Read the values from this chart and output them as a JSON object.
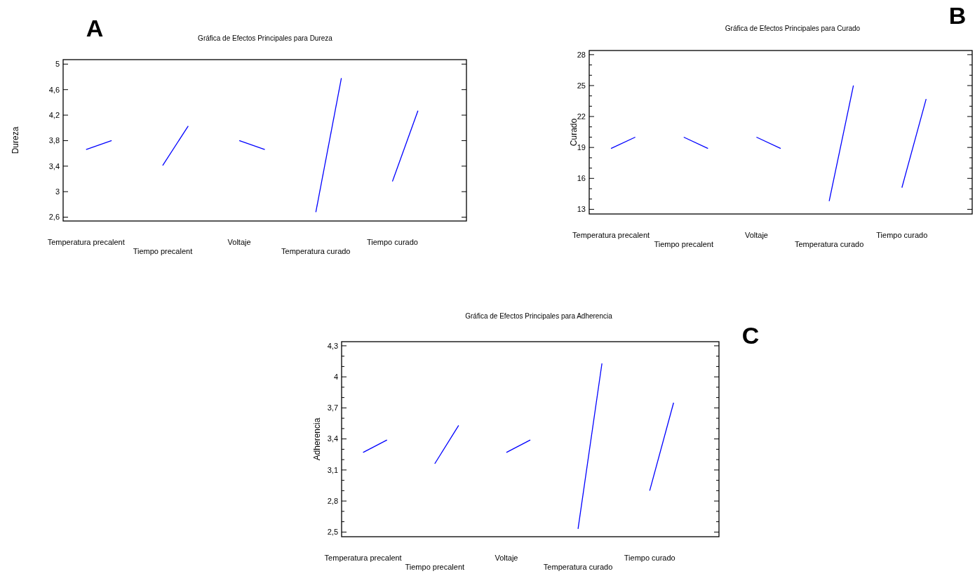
{
  "chart_data": [
    {
      "type": "line",
      "title": "Gráfica de Efectos Principales para Dureza",
      "ylabel": "Dureza",
      "annotations": [
        "A"
      ],
      "grid": false,
      "marker": "none",
      "line_style": "solid",
      "categories": [
        "Temperatura precalent",
        null,
        null,
        "Tiempo precalent",
        null,
        null,
        "Voltaje",
        null,
        null,
        "Temperatura curado",
        null,
        null,
        "Tiempo curado",
        null,
        null
      ],
      "series": [
        {
          "color": "#0000ff",
          "values": [
            3.66,
            3.8,
            null,
            null,
            null,
            null,
            null,
            null,
            null,
            null,
            null,
            null,
            null,
            null,
            null
          ]
        },
        {
          "color": "#0000ff",
          "values": [
            null,
            null,
            null,
            3.41,
            4.03,
            null,
            null,
            null,
            null,
            null,
            null,
            null,
            null,
            null,
            null
          ]
        },
        {
          "color": "#0000ff",
          "values": [
            null,
            null,
            null,
            null,
            null,
            null,
            3.8,
            3.66,
            null,
            null,
            null,
            null,
            null,
            null,
            null
          ]
        },
        {
          "color": "#0000ff",
          "values": [
            null,
            null,
            null,
            null,
            null,
            null,
            null,
            null,
            null,
            2.68,
            4.78,
            null,
            null,
            null,
            null
          ]
        },
        {
          "color": "#0000ff",
          "values": [
            null,
            null,
            null,
            null,
            null,
            null,
            null,
            null,
            null,
            null,
            null,
            null,
            3.16,
            4.27,
            null
          ]
        }
      ],
      "ylim": [
        2.54,
        5.07
      ],
      "yticks": [
        {
          "value": 2.6,
          "label": "2,6"
        },
        3,
        {
          "value": 3.4,
          "label": "3,4"
        },
        {
          "value": 3.8,
          "label": "3,8"
        },
        {
          "value": 4.2,
          "label": "4,2"
        },
        {
          "value": 4.6,
          "label": "4,6"
        },
        5
      ]
    },
    {
      "type": "line",
      "title": "Gráfica de Efectos Principales para Curado",
      "ylabel": "Curado",
      "annotations": [
        "B"
      ],
      "grid": false,
      "marker": "none",
      "line_style": "solid",
      "categories": [
        "Temperatura precalent",
        null,
        null,
        "Tiempo precalent",
        null,
        null,
        "Voltaje",
        null,
        null,
        "Temperatura curado",
        null,
        null,
        "Tiempo curado",
        null,
        null
      ],
      "series": [
        {
          "color": "#0000ff",
          "values": [
            18.9,
            20,
            null,
            null,
            null,
            null,
            null,
            null,
            null,
            null,
            null,
            null,
            null,
            null,
            null
          ]
        },
        {
          "color": "#0000ff",
          "values": [
            null,
            null,
            null,
            20,
            18.9,
            null,
            null,
            null,
            null,
            null,
            null,
            null,
            null,
            null,
            null
          ]
        },
        {
          "color": "#0000ff",
          "values": [
            null,
            null,
            null,
            null,
            null,
            null,
            20,
            18.9,
            null,
            null,
            null,
            null,
            null,
            null,
            null
          ]
        },
        {
          "color": "#0000ff",
          "values": [
            null,
            null,
            null,
            null,
            null,
            null,
            null,
            null,
            null,
            13.8,
            25,
            null,
            null,
            null,
            null
          ]
        },
        {
          "color": "#0000ff",
          "values": [
            null,
            null,
            null,
            null,
            null,
            null,
            null,
            null,
            null,
            null,
            null,
            null,
            15.1,
            23.7,
            null
          ]
        }
      ],
      "ylim": [
        12.55,
        28.4
      ],
      "yticks": [
        13,
        {
          "value": 14,
          "label": null
        },
        {
          "value": 15,
          "label": null
        },
        16,
        {
          "value": 17,
          "label": null
        },
        {
          "value": 18,
          "label": null
        },
        19,
        {
          "value": 20,
          "label": null
        },
        {
          "value": 21,
          "label": null
        },
        22,
        {
          "value": 23,
          "label": null
        },
        {
          "value": 24,
          "label": null
        },
        25,
        {
          "value": 26,
          "label": null
        },
        {
          "value": 27,
          "label": null
        },
        28
      ]
    },
    {
      "type": "line",
      "title": "Gráfica de Efectos Principales para Adherencia",
      "ylabel": "Adherencia",
      "annotations": [
        "C"
      ],
      "grid": false,
      "marker": "none",
      "line_style": "solid",
      "categories": [
        "Temperatura precalent",
        null,
        null,
        "Tiempo precalent",
        null,
        null,
        "Voltaje",
        null,
        null,
        "Temperatura curado",
        null,
        null,
        "Tiempo curado",
        null,
        null
      ],
      "series": [
        {
          "color": "#0000ff",
          "values": [
            3.27,
            3.39,
            null,
            null,
            null,
            null,
            null,
            null,
            null,
            null,
            null,
            null,
            null,
            null,
            null
          ]
        },
        {
          "color": "#0000ff",
          "values": [
            null,
            null,
            null,
            3.16,
            3.53,
            null,
            null,
            null,
            null,
            null,
            null,
            null,
            null,
            null,
            null
          ]
        },
        {
          "color": "#0000ff",
          "values": [
            null,
            null,
            null,
            null,
            null,
            null,
            3.27,
            3.39,
            null,
            null,
            null,
            null,
            null,
            null,
            null
          ]
        },
        {
          "color": "#0000ff",
          "values": [
            null,
            null,
            null,
            null,
            null,
            null,
            null,
            null,
            null,
            2.53,
            4.13,
            null,
            null,
            null,
            null
          ]
        },
        {
          "color": "#0000ff",
          "values": [
            null,
            null,
            null,
            null,
            null,
            null,
            null,
            null,
            null,
            null,
            null,
            null,
            2.9,
            3.75,
            null
          ]
        }
      ],
      "ylim": [
        2.455,
        4.34
      ],
      "yticks": [
        {
          "value": 2.5,
          "label": "2,5"
        },
        {
          "value": 2.6,
          "label": null
        },
        {
          "value": 2.7,
          "label": null
        },
        {
          "value": 2.8,
          "label": "2,8"
        },
        {
          "value": 2.9,
          "label": null
        },
        {
          "value": 3.0,
          "label": null
        },
        {
          "value": 3.1,
          "label": "3,1"
        },
        {
          "value": 3.2,
          "label": null
        },
        {
          "value": 3.3,
          "label": null
        },
        {
          "value": 3.4,
          "label": "3,4"
        },
        {
          "value": 3.5,
          "label": null
        },
        {
          "value": 3.6,
          "label": null
        },
        {
          "value": 3.7,
          "label": "3,7"
        },
        {
          "value": 3.8,
          "label": null
        },
        {
          "value": 3.9,
          "label": null
        },
        4,
        {
          "value": 4.1,
          "label": null
        },
        {
          "value": 4.2,
          "label": null
        },
        {
          "value": 4.3,
          "label": "4,3"
        }
      ]
    }
  ]
}
